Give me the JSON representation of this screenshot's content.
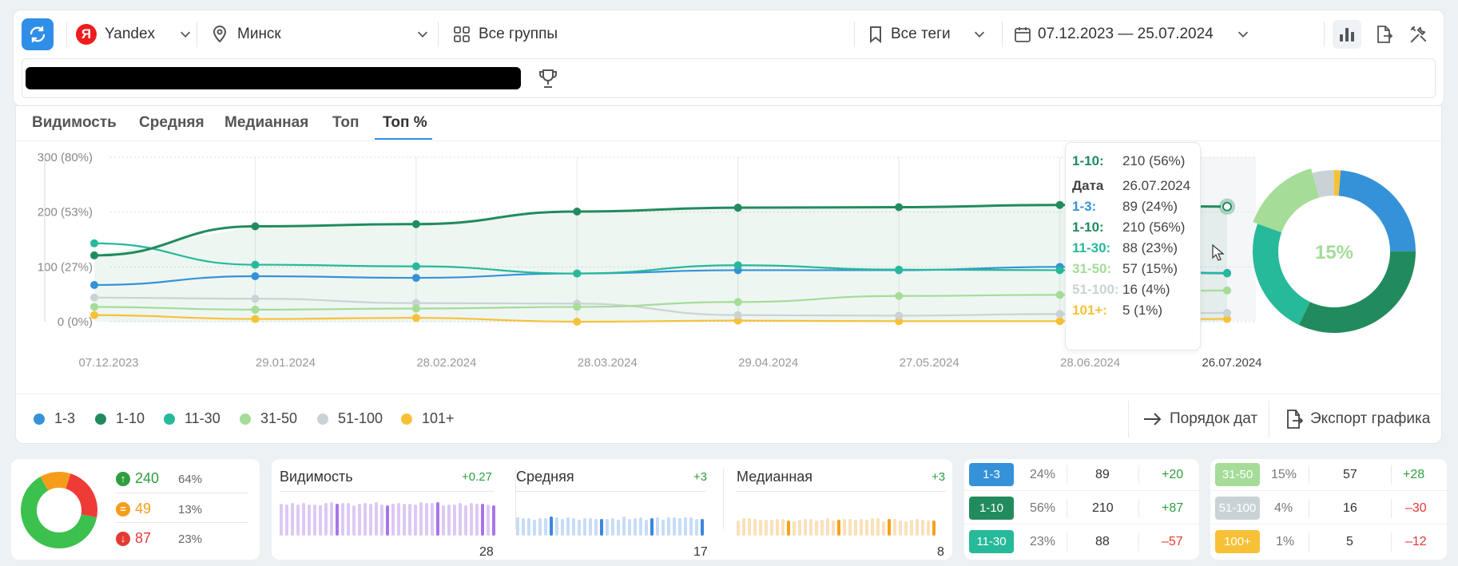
{
  "toolbar": {
    "search_engine": "Yandex",
    "yandex_letter": "Я",
    "region": "Минск",
    "groups": "Все группы",
    "tags": "Все теги",
    "date_range": "07.12.2023 — 25.07.2024"
  },
  "tabs": [
    "Видимость",
    "Средняя",
    "Медианная",
    "Топ",
    "Топ %"
  ],
  "active_tab": "Топ %",
  "chart_data": {
    "type": "line",
    "y_tick_labels": [
      "300 (80%)",
      "200 (53%)",
      "100 (27%)",
      "0 (0%)"
    ],
    "ylim": [
      0,
      300
    ],
    "categories": [
      "07.12.2023",
      "29.01.2024",
      "28.02.2024",
      "28.03.2024",
      "29.04.2024",
      "27.05.2024",
      "28.06.2024",
      "26.07.2024"
    ],
    "series": [
      {
        "name": "1-3",
        "color": "#3592d8",
        "values": [
          67,
          83,
          80,
          88,
          94,
          94,
          100,
          89
        ]
      },
      {
        "name": "1-10",
        "color": "#228b5e",
        "values": [
          121,
          174,
          178,
          201,
          208,
          209,
          213,
          210
        ]
      },
      {
        "name": "11-30",
        "color": "#26b99a",
        "values": [
          143,
          104,
          101,
          88,
          103,
          95,
          94,
          88
        ]
      },
      {
        "name": "31-50",
        "color": "#a4dc98",
        "values": [
          27,
          22,
          24,
          27,
          36,
          47,
          49,
          57
        ]
      },
      {
        "name": "51-100",
        "color": "#c9d3d6",
        "values": [
          44,
          42,
          34,
          33,
          12,
          11,
          14,
          16
        ]
      },
      {
        "name": "101+",
        "color": "#f7c137",
        "values": [
          12,
          5,
          7,
          0,
          2,
          1,
          1,
          5
        ]
      }
    ],
    "donut": {
      "center_label": "15%",
      "slices": [
        {
          "name": "1-3",
          "value": 89,
          "color": "#3592d8"
        },
        {
          "name": "1-10",
          "value": 121,
          "color": "#228b5e"
        },
        {
          "name": "11-30",
          "value": 88,
          "color": "#26b99a"
        },
        {
          "name": "31-50",
          "value": 57,
          "color": "#a4dc98"
        },
        {
          "name": "51-100",
          "value": 16,
          "color": "#c9d3d6"
        },
        {
          "name": "101+",
          "value": 5,
          "color": "#f7c137"
        }
      ]
    }
  },
  "tooltip": {
    "header_key": "1-10:",
    "header_val": "210 (56%)",
    "date_key": "Дата",
    "date_val": "26.07.2024",
    "rows": [
      {
        "k": "1-3:",
        "v": "89 (24%)",
        "color": "#3592d8"
      },
      {
        "k": "1-10:",
        "v": "210 (56%)",
        "color": "#228b5e"
      },
      {
        "k": "11-30:",
        "v": "88 (23%)",
        "color": "#26b99a"
      },
      {
        "k": "31-50:",
        "v": "57 (15%)",
        "color": "#a4dc98"
      },
      {
        "k": "51-100:",
        "v": "16 (4%)",
        "color": "#c9d3d6"
      },
      {
        "k": "101+:",
        "v": "5 (1%)",
        "color": "#f7c137"
      }
    ]
  },
  "legend": [
    {
      "label": "1-3",
      "color": "#3592d8"
    },
    {
      "label": "1-10",
      "color": "#228b5e"
    },
    {
      "label": "11-30",
      "color": "#26b99a"
    },
    {
      "label": "31-50",
      "color": "#a4dc98"
    },
    {
      "label": "51-100",
      "color": "#c9d3d6"
    },
    {
      "label": "101+",
      "color": "#f7c137"
    }
  ],
  "actions": {
    "date_order": "Порядок дат",
    "export": "Экспорт графика"
  },
  "summary": {
    "rows": [
      {
        "value": "240",
        "pct": "64%",
        "color": "#2e9e3f",
        "icon": "arrow-up-icon"
      },
      {
        "value": "49",
        "pct": "13%",
        "color": "#f59d1a",
        "icon": "equals-icon"
      },
      {
        "value": "87",
        "pct": "23%",
        "color": "#e53935",
        "icon": "arrow-down-icon"
      }
    ],
    "pie": [
      {
        "value": 240,
        "color": "#3cc14e"
      },
      {
        "value": 49,
        "color": "#f59d1a"
      },
      {
        "value": 87,
        "color": "#ef3b36"
      }
    ]
  },
  "metrics": [
    {
      "title": "Видимость",
      "delta": "+0.27",
      "value": "28"
    },
    {
      "title": "Средняя",
      "delta": "+3",
      "value": "17"
    },
    {
      "title": "Медианная",
      "delta": "+3",
      "value": "8"
    }
  ],
  "ranges_left": [
    {
      "label": "1-3",
      "pct": "24%",
      "count": "89",
      "delta": "+20",
      "color": "#3592d8",
      "delta_color": "#2e9e3f"
    },
    {
      "label": "1-10",
      "pct": "56%",
      "count": "210",
      "delta": "+87",
      "color": "#228b5e",
      "delta_color": "#2e9e3f"
    },
    {
      "label": "11-30",
      "pct": "23%",
      "count": "88",
      "delta": "–57",
      "color": "#26b99a",
      "delta_color": "#e53935"
    }
  ],
  "ranges_right": [
    {
      "label": "31-50",
      "pct": "15%",
      "count": "57",
      "delta": "+28",
      "color": "#a4dc98",
      "delta_color": "#2e9e3f"
    },
    {
      "label": "51-100",
      "pct": "4%",
      "count": "16",
      "delta": "–30",
      "color": "#c9d3d6",
      "delta_color": "#e53935"
    },
    {
      "label": "100+",
      "pct": "1%",
      "count": "5",
      "delta": "–12",
      "color": "#f7c137",
      "delta_color": "#e53935"
    }
  ]
}
